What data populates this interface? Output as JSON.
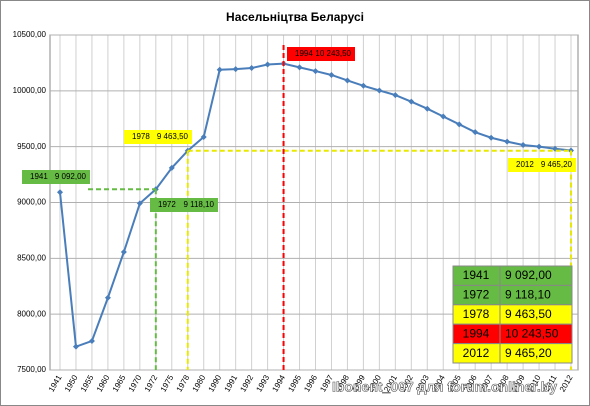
{
  "chart_data": {
    "type": "line",
    "title": "Насельніцтва Беларусі",
    "categories": [
      "1941",
      "1950",
      "1955",
      "1960",
      "1965",
      "1970",
      "1972",
      "1975",
      "1978",
      "1980",
      "1990",
      "1991",
      "1992",
      "1993",
      "1994",
      "1995",
      "1996",
      "1997",
      "1998",
      "1999",
      "2000",
      "2001",
      "2002",
      "2003",
      "2004",
      "2005",
      "2006",
      "2007",
      "2008",
      "2009",
      "2010",
      "2011",
      "2012"
    ],
    "values": [
      9092.0,
      7709,
      7760,
      8147,
      8557,
      8992,
      9118.1,
      9310,
      9463.5,
      9587,
      10189,
      10194,
      10204,
      10236,
      10243.5,
      10210,
      10177,
      10142,
      10093,
      10045,
      10003,
      9962,
      9903,
      9840,
      9770,
      9700,
      9630,
      9580,
      9545,
      9515,
      9500,
      9481,
      9465.2
    ],
    "color": "#4a7ebb",
    "ylim": [
      7500,
      10500
    ],
    "yticks": [
      {
        "value": 7500,
        "label": "7500,00"
      },
      {
        "value": 8000,
        "label": "8000,00"
      },
      {
        "value": 8500,
        "label": "8500,00"
      },
      {
        "value": 9000,
        "label": "9000,00"
      },
      {
        "value": 9500,
        "label": "9500,00"
      },
      {
        "value": 10000,
        "label": "10000,00"
      },
      {
        "value": 10500,
        "label": "10500,00"
      }
    ],
    "grid": true,
    "annotations": [
      {
        "year": "1941",
        "value_label": "9 092,00",
        "color": "#66bb44"
      },
      {
        "year": "1972",
        "value_label": "9 118,10",
        "color": "#66bb44"
      },
      {
        "year": "1978",
        "value_label": "9 463,50",
        "color": "#ffff00"
      },
      {
        "year": "1994",
        "value_label": "10 243,50",
        "color": "#ff0000"
      },
      {
        "year": "2012",
        "value_label": "9 465,20",
        "color": "#ffff00"
      }
    ],
    "watermark": "Ibonent_007 для forum.onliner.by"
  }
}
